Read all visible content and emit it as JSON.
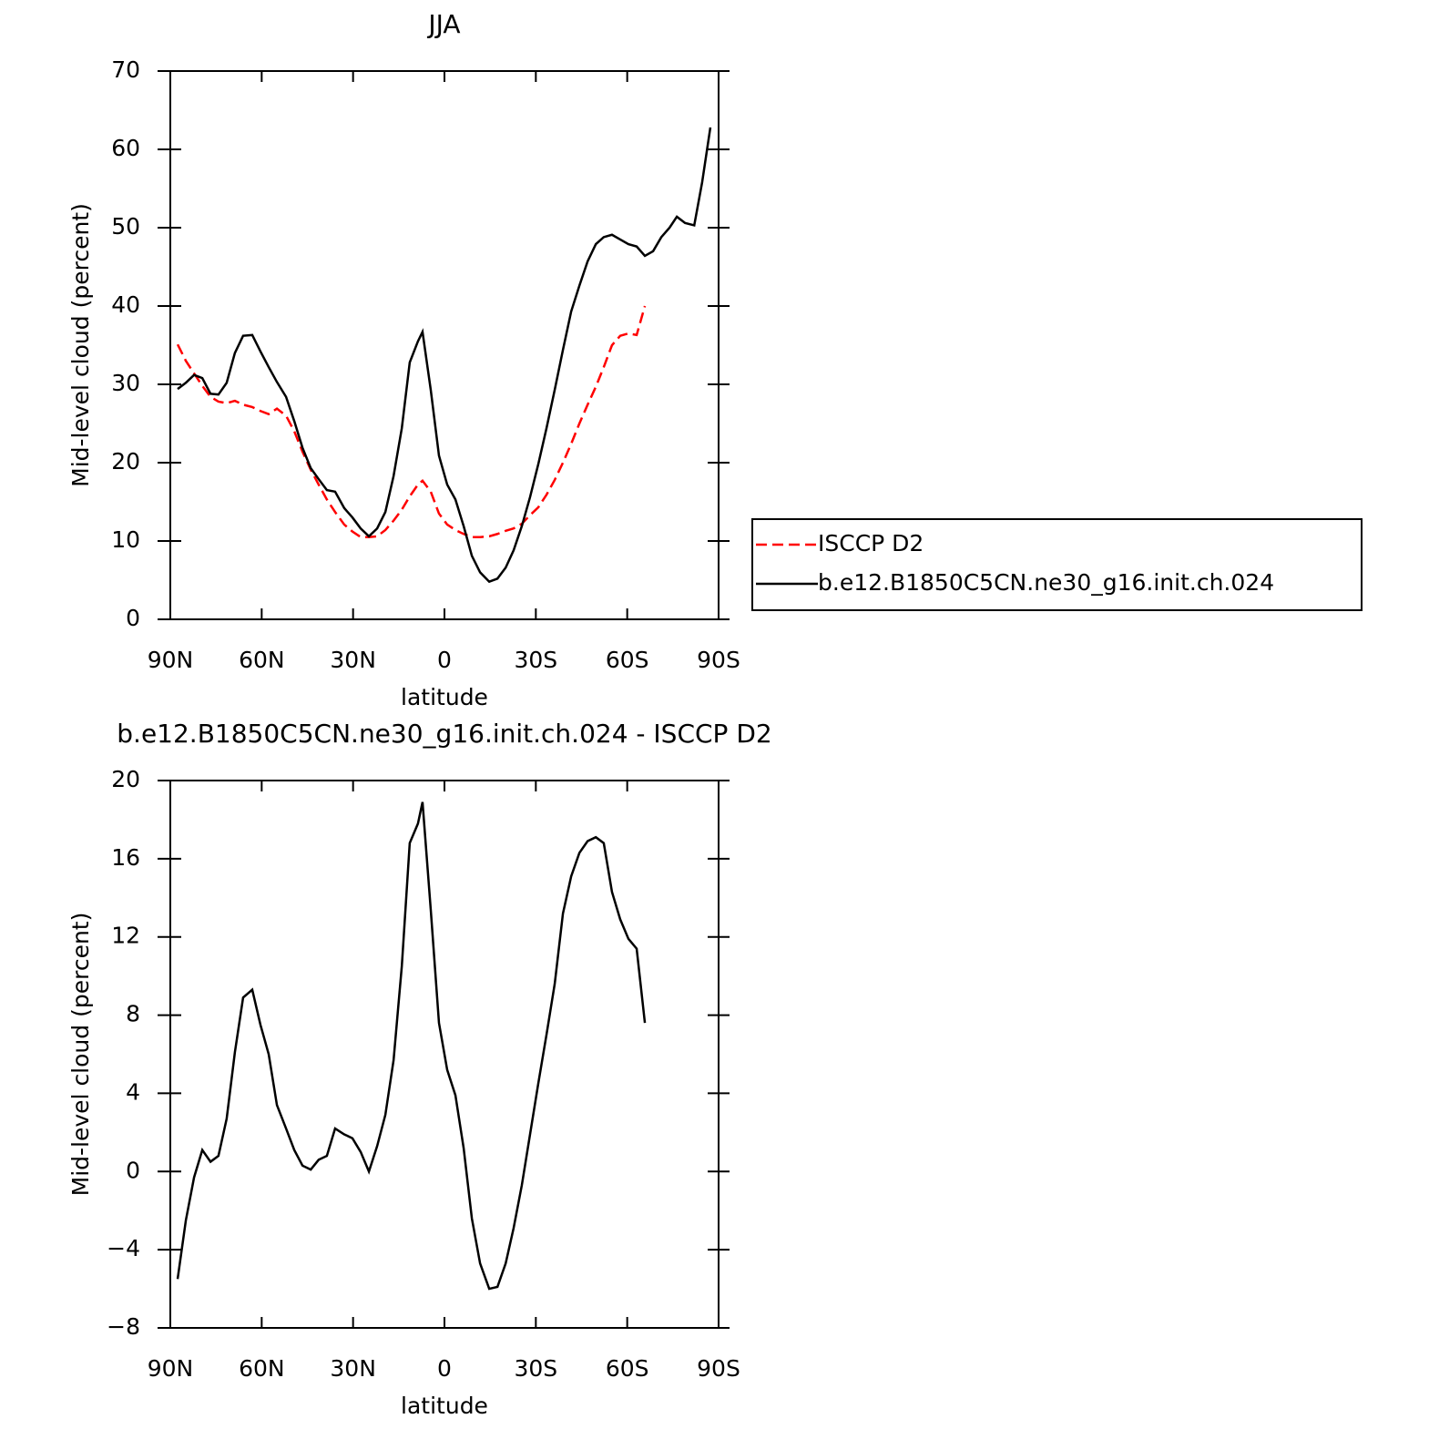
{
  "chart_data": [
    {
      "type": "line",
      "title": "JJA",
      "xlabel": "latitude",
      "ylabel": "Mid-level cloud (percent)",
      "xlim": [
        90,
        -90
      ],
      "xticks": [
        {
          "value": 90,
          "label": "90N"
        },
        {
          "value": 60,
          "label": "60N"
        },
        {
          "value": 30,
          "label": "30N"
        },
        0,
        {
          "value": -30,
          "label": "30S"
        },
        {
          "value": -60,
          "label": "60S"
        },
        {
          "value": -90,
          "label": "90S"
        }
      ],
      "ylim": [
        0,
        70
      ],
      "yticks": [
        0,
        10,
        20,
        30,
        40,
        50,
        60,
        70
      ],
      "legend": "right",
      "x": [
        87.6,
        84.9,
        82.2,
        79.5,
        76.8,
        74.2,
        71.5,
        68.8,
        66.1,
        63.1,
        60.4,
        57.7,
        55.0,
        52.0,
        49.3,
        46.6,
        43.9,
        41.3,
        38.6,
        35.9,
        32.9,
        30.2,
        27.5,
        24.8,
        22.1,
        19.4,
        16.7,
        14.0,
        11.4,
        8.7,
        7.2,
        4.5,
        1.8,
        -0.9,
        -3.6,
        -6.3,
        -9.0,
        -11.7,
        -14.7,
        -17.4,
        -20.1,
        -22.7,
        -25.4,
        -28.1,
        -30.8,
        -33.5,
        -36.2,
        -38.9,
        -41.6,
        -44.3,
        -47.0,
        -49.7,
        -52.3,
        -55.0,
        -57.7,
        -60.4,
        -63.1,
        -65.8,
        -68.5,
        -71.2,
        -73.9,
        -76.3,
        -79.0,
        -82.0,
        -84.6,
        -87.3
      ],
      "series": [
        {
          "name": "ISCCP D2",
          "color": "#ff0000",
          "style": "dashed",
          "values": [
            35.1,
            33.0,
            31.4,
            29.8,
            28.4,
            27.8,
            27.6,
            27.9,
            27.4,
            27.1,
            26.6,
            26.2,
            26.9,
            26.0,
            24.0,
            21.4,
            19.1,
            17.2,
            15.3,
            13.7,
            12.1,
            11.2,
            10.5,
            10.5,
            10.6,
            11.4,
            12.6,
            14.0,
            15.7,
            17.2,
            17.7,
            16.3,
            13.5,
            12.1,
            11.4,
            10.9,
            10.5,
            10.5,
            10.6,
            10.9,
            11.3,
            11.6,
            12.2,
            13.3,
            14.3,
            15.9,
            17.8,
            20.0,
            22.4,
            25.0,
            27.4,
            29.7,
            32.2,
            35.0,
            36.2,
            36.5,
            36.3,
            40.0,
            null,
            null,
            null,
            null,
            null,
            null,
            null,
            null
          ]
        },
        {
          "name": "b.e12.B1850C5CN.ne30_g16.init.ch.024",
          "color": "#000000",
          "style": "solid",
          "values": [
            29.4,
            30.2,
            31.2,
            30.8,
            28.8,
            28.7,
            30.2,
            34.0,
            36.2,
            36.3,
            34.2,
            32.2,
            30.3,
            28.4,
            25.3,
            21.9,
            19.3,
            17.9,
            16.5,
            16.3,
            14.2,
            13.0,
            11.6,
            10.6,
            11.6,
            13.7,
            18.3,
            24.4,
            32.8,
            35.5,
            36.7,
            29.3,
            20.9,
            17.2,
            15.3,
            11.9,
            8.1,
            6.0,
            4.8,
            5.2,
            6.6,
            8.8,
            11.9,
            15.6,
            19.8,
            24.4,
            29.3,
            34.4,
            39.3,
            42.6,
            45.7,
            47.9,
            48.8,
            49.1,
            48.5,
            47.9,
            47.6,
            46.4,
            47.0,
            48.8,
            50.0,
            51.4,
            50.6,
            50.3,
            55.8,
            62.8
          ]
        }
      ]
    },
    {
      "type": "line",
      "title": "b.e12.B1850C5CN.ne30_g16.init.ch.024 - ISCCP D2",
      "xlabel": "latitude",
      "ylabel": "Mid-level cloud (percent)",
      "xlim": [
        90,
        -90
      ],
      "xticks": [
        {
          "value": 90,
          "label": "90N"
        },
        {
          "value": 60,
          "label": "60N"
        },
        {
          "value": 30,
          "label": "30N"
        },
        0,
        {
          "value": -30,
          "label": "30S"
        },
        {
          "value": -60,
          "label": "60S"
        },
        {
          "value": -90,
          "label": "90S"
        }
      ],
      "ylim": [
        -8,
        20
      ],
      "yticks": [
        {
          "value": -8,
          "label": "−8"
        },
        {
          "value": -4,
          "label": "−4"
        },
        0,
        4,
        8,
        12,
        16,
        20
      ],
      "x": [
        87.6,
        84.9,
        82.2,
        79.5,
        76.8,
        74.2,
        71.5,
        68.8,
        66.1,
        63.1,
        60.4,
        57.7,
        55.0,
        52.0,
        49.3,
        46.6,
        43.9,
        41.3,
        38.6,
        35.9,
        32.9,
        30.2,
        27.5,
        24.8,
        22.1,
        19.4,
        16.7,
        14.0,
        11.4,
        8.7,
        7.2,
        4.5,
        1.8,
        -0.9,
        -3.6,
        -6.3,
        -9.0,
        -11.7,
        -14.7,
        -17.4,
        -20.1,
        -22.7,
        -25.4,
        -28.1,
        -30.8,
        -33.5,
        -36.2,
        -38.9,
        -41.6,
        -44.3,
        -47.0,
        -49.7,
        -52.3,
        -55.0,
        -57.7,
        -60.4,
        -63.1,
        -65.8
      ],
      "series": [
        {
          "color": "#000000",
          "style": "solid",
          "values": [
            -5.5,
            -2.5,
            -0.3,
            1.1,
            0.5,
            0.8,
            2.7,
            6.1,
            8.9,
            9.3,
            7.5,
            6.0,
            3.4,
            2.2,
            1.1,
            0.3,
            0.1,
            0.6,
            0.8,
            2.2,
            1.9,
            1.7,
            1.0,
            0.0,
            1.3,
            2.9,
            5.7,
            10.5,
            16.8,
            17.8,
            18.9,
            13.4,
            7.6,
            5.2,
            3.9,
            1.2,
            -2.4,
            -4.7,
            -6.0,
            -5.9,
            -4.7,
            -2.9,
            -0.7,
            1.9,
            4.5,
            7.0,
            9.6,
            13.2,
            15.1,
            16.3,
            16.9,
            17.1,
            16.8,
            14.3,
            12.9,
            11.9,
            11.4,
            7.6
          ]
        }
      ]
    }
  ]
}
